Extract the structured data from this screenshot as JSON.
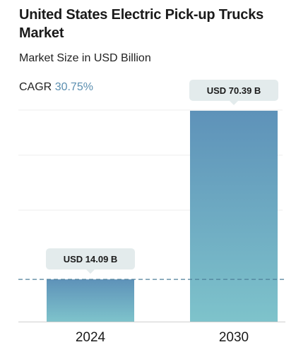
{
  "header": {
    "title": "United States Electric Pick-up Trucks Market",
    "subtitle": "Market Size in USD Billion",
    "cagr_label": "CAGR",
    "cagr_value": "30.75%"
  },
  "colors": {
    "bar_top": "#5e92b9",
    "bar_bottom": "#7ec3cb",
    "label_box": "#e3ebec",
    "dashed_line": "#4d7f99",
    "grid": "#eeeeee",
    "cagr_accent": "#5b8fb0"
  },
  "chart_data": {
    "type": "bar",
    "categories": [
      "2024",
      "2030"
    ],
    "values": [
      14.09,
      70.39
    ],
    "data_labels": [
      "USD 14.09 B",
      "USD 70.39 B"
    ],
    "title": "United States Electric Pick-up Trucks Market",
    "subtitle": "Market Size in USD Billion",
    "ylabel": "",
    "xlabel": "",
    "ylim": [
      0,
      70.39
    ],
    "grid": true,
    "reference_line": 14.09
  }
}
